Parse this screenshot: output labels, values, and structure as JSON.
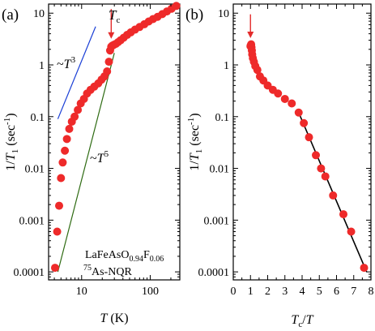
{
  "chart_data": [
    {
      "type": "scatter",
      "panel_label": "(a)",
      "xscale": "log",
      "yscale": "log",
      "xlim": [
        3.3,
        270
      ],
      "ylim": [
        7e-05,
        15
      ],
      "x_ticks": [
        {
          "v": 10,
          "label": "10"
        },
        {
          "v": 100,
          "label": "100"
        }
      ],
      "y_ticks": [
        {
          "v": 0.0001,
          "label": "0.0001"
        },
        {
          "v": 0.001,
          "label": "0.001"
        },
        {
          "v": 0.01,
          "label": "0.01"
        },
        {
          "v": 0.1,
          "label": "0.1"
        },
        {
          "v": 1,
          "label": "1"
        },
        {
          "v": 10,
          "label": "10"
        }
      ],
      "ylabel": "1/T1 (sec-1)",
      "ylabel_parts": {
        "a": "1/",
        "b": "T",
        "c": "1",
        "d": " (sec",
        "e": "-1",
        "f": ")"
      },
      "xlabel_parts": {
        "a": "T",
        "b": " (K)"
      },
      "tc_label_parts": {
        "a": "T",
        "b": "c"
      },
      "tc_marker": {
        "x": 27,
        "y_top": 12,
        "y_bottom": 3.2
      },
      "annotations": {
        "t3": {
          "a": "~",
          "b": "T",
          "c": "3"
        },
        "t5": {
          "a": "~",
          "b": "T",
          "c": "5"
        },
        "compound": {
          "a": "LaFeAsO",
          "b": "0.94",
          "c": "F",
          "d": "0.06"
        },
        "nucleus": {
          "a": "75",
          "b": "As-NQR"
        }
      },
      "guide_lines": [
        {
          "name": "T^3",
          "color": "#1a3fd6",
          "points": [
            [
              4.5,
              0.09
            ],
            [
              16,
              5.5
            ]
          ]
        },
        {
          "name": "T^5",
          "color": "#2e6b12",
          "points": [
            [
              4.5,
              0.0001
            ],
            [
              30,
              1.7
            ]
          ]
        }
      ],
      "series": [
        {
          "marker_color": "#ee2a2a",
          "x": [
            4.1,
            4.4,
            4.7,
            5.0,
            5.3,
            5.7,
            6.1,
            6.6,
            7.2,
            7.9,
            8.8,
            9.7,
            10.8,
            12.0,
            13.5,
            15.3,
            17.5,
            19.5,
            21.5,
            23.5,
            25.0,
            26.0,
            27.0,
            28.0,
            29.5,
            31.5,
            34.0,
            37.0,
            41.0,
            46.0,
            52.0,
            60.0,
            70.0,
            82.0,
            95.0,
            110.0,
            128.0,
            150.0,
            175.0,
            205.0,
            240.0
          ],
          "y": [
            0.00012,
            0.0006,
            0.0019,
            0.0065,
            0.013,
            0.022,
            0.037,
            0.058,
            0.08,
            0.1,
            0.135,
            0.18,
            0.22,
            0.28,
            0.33,
            0.38,
            0.44,
            0.52,
            0.6,
            0.75,
            1.15,
            1.9,
            2.25,
            2.35,
            2.45,
            2.55,
            2.75,
            3.0,
            3.35,
            3.8,
            4.25,
            4.8,
            5.4,
            6.1,
            6.9,
            7.7,
            8.5,
            9.6,
            10.8,
            12.2,
            13.8
          ]
        }
      ]
    },
    {
      "type": "scatter",
      "panel_label": "(b)",
      "xscale": "linear",
      "yscale": "log",
      "xlim": [
        0,
        8
      ],
      "ylim": [
        7e-05,
        15
      ],
      "x_ticks": [
        {
          "v": 0,
          "label": "0"
        },
        {
          "v": 1,
          "label": "1"
        },
        {
          "v": 2,
          "label": "2"
        },
        {
          "v": 3,
          "label": "3"
        },
        {
          "v": 4,
          "label": "4"
        },
        {
          "v": 5,
          "label": "5"
        },
        {
          "v": 6,
          "label": "6"
        },
        {
          "v": 7,
          "label": "7"
        },
        {
          "v": 8,
          "label": "8"
        }
      ],
      "y_ticks": [
        {
          "v": 0.0001,
          "label": "0.0001"
        },
        {
          "v": 0.001,
          "label": "0.001"
        },
        {
          "v": 0.01,
          "label": "0.01"
        },
        {
          "v": 0.1,
          "label": "0.1"
        },
        {
          "v": 1,
          "label": "1"
        },
        {
          "v": 10,
          "label": "10"
        }
      ],
      "ylabel": "1/T1 (sec-1)",
      "ylabel_parts": {
        "a": "1/",
        "b": "T",
        "c": "1",
        "d": " (sec",
        "e": "-1",
        "f": ")"
      },
      "xlabel_parts": {
        "a": "T",
        "b": "c",
        "c": "/",
        "d": "T"
      },
      "tc_marker": {
        "x": 1.0,
        "y_top": 9.5,
        "y_bottom": 3.3
      },
      "fit_line": {
        "color": "#000000",
        "points": [
          [
            3.8,
            0.12
          ],
          [
            7.75,
            0.0001
          ]
        ]
      },
      "series": [
        {
          "marker_color": "#ee2a2a",
          "x": [
            1.0,
            1.02,
            1.04,
            1.06,
            1.08,
            1.1,
            1.14,
            1.2,
            1.28,
            1.4,
            1.55,
            1.75,
            2.0,
            2.3,
            2.6,
            3.0,
            3.4,
            3.8,
            4.1,
            4.4,
            4.8,
            5.1,
            5.35,
            5.8,
            6.4,
            6.85,
            7.6
          ],
          "y": [
            2.3,
            2.4,
            2.5,
            2.2,
            1.9,
            1.6,
            1.35,
            1.15,
            0.95,
            0.8,
            0.6,
            0.5,
            0.4,
            0.33,
            0.28,
            0.22,
            0.18,
            0.12,
            0.075,
            0.04,
            0.018,
            0.01,
            0.007,
            0.003,
            0.0013,
            0.0006,
            0.00012
          ]
        }
      ]
    }
  ]
}
